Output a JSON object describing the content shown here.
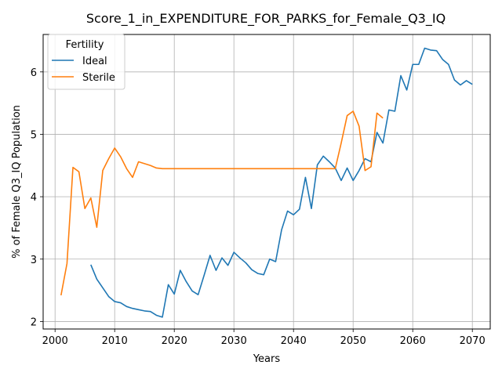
{
  "chart_data": {
    "type": "line",
    "title": "Score_1_in_EXPENDITURE_FOR_PARKS_for_Female_Q3_IQ",
    "xlabel": "Years",
    "ylabel": "% of Female Q3_IQ Population",
    "xlim": [
      1998,
      2073
    ],
    "ylim": [
      1.88,
      6.6
    ],
    "x_ticks": [
      2000,
      2010,
      2020,
      2030,
      2040,
      2050,
      2060,
      2070
    ],
    "y_ticks": [
      2,
      3,
      4,
      5,
      6
    ],
    "grid": true,
    "legend": {
      "title": "Fertility",
      "position": "top-left"
    },
    "series": [
      {
        "name": "Ideal",
        "color": "#1f77b4",
        "x": [
          2006,
          2007,
          2008,
          2009,
          2010,
          2011,
          2012,
          2013,
          2014,
          2015,
          2016,
          2017,
          2018,
          2019,
          2020,
          2021,
          2022,
          2023,
          2024,
          2025,
          2026,
          2027,
          2028,
          2029,
          2030,
          2031,
          2032,
          2033,
          2034,
          2035,
          2036,
          2037,
          2038,
          2039,
          2040,
          2041,
          2042,
          2043,
          2044,
          2045,
          2046,
          2047,
          2048,
          2049,
          2050,
          2051,
          2052,
          2053,
          2054,
          2055,
          2056,
          2057,
          2058,
          2059,
          2060,
          2061,
          2062,
          2063,
          2064,
          2065,
          2066,
          2067,
          2068,
          2069,
          2070
        ],
        "values": [
          2.91,
          2.68,
          2.54,
          2.4,
          2.32,
          2.3,
          2.24,
          2.21,
          2.19,
          2.17,
          2.16,
          2.1,
          2.07,
          2.59,
          2.44,
          2.82,
          2.64,
          2.49,
          2.43,
          2.74,
          3.06,
          2.82,
          3.02,
          2.9,
          3.11,
          3.02,
          2.94,
          2.83,
          2.77,
          2.75,
          3.0,
          2.96,
          3.47,
          3.77,
          3.71,
          3.8,
          4.31,
          3.81,
          4.51,
          4.65,
          4.56,
          4.46,
          4.26,
          4.46,
          4.26,
          4.42,
          4.61,
          4.56,
          5.03,
          4.86,
          5.39,
          5.37,
          5.94,
          5.71,
          6.12,
          6.12,
          6.38,
          6.35,
          6.34,
          6.2,
          6.12,
          5.87,
          5.79,
          5.86,
          5.8
        ]
      },
      {
        "name": "Sterile",
        "color": "#ff7f0e",
        "x": [
          2001,
          2002,
          2003,
          2004,
          2005,
          2006,
          2007,
          2008,
          2009,
          2010,
          2011,
          2012,
          2013,
          2014,
          2015,
          2016,
          2017,
          2018,
          2019,
          2020,
          2021,
          2022,
          2023,
          2024,
          2025,
          2026,
          2027,
          2028,
          2029,
          2030,
          2031,
          2032,
          2033,
          2034,
          2035,
          2036,
          2037,
          2038,
          2039,
          2040,
          2041,
          2042,
          2043,
          2044,
          2045,
          2046,
          2047,
          2048,
          2049,
          2050,
          2051,
          2052,
          2053,
          2054,
          2055
        ],
        "values": [
          2.42,
          2.93,
          4.47,
          4.4,
          3.81,
          3.98,
          3.51,
          4.42,
          4.61,
          4.78,
          4.64,
          4.45,
          4.31,
          4.56,
          4.53,
          4.5,
          4.46,
          4.45,
          4.45,
          4.45,
          4.45,
          4.45,
          4.45,
          4.45,
          4.45,
          4.45,
          4.45,
          4.45,
          4.45,
          4.45,
          4.45,
          4.45,
          4.45,
          4.45,
          4.45,
          4.45,
          4.45,
          4.45,
          4.45,
          4.45,
          4.45,
          4.45,
          4.45,
          4.45,
          4.45,
          4.45,
          4.45,
          4.86,
          5.3,
          5.37,
          5.13,
          4.42,
          4.48,
          5.34,
          5.26
        ]
      }
    ]
  }
}
